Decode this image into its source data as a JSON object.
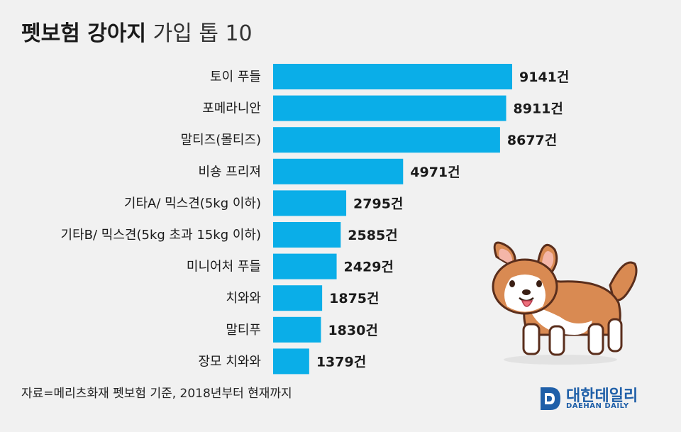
{
  "title": {
    "bold": "펫보험 강아지",
    "light": "가입 톱 10"
  },
  "source": "자료=메리츠화재 펫보험 기준, 2018년부터 현재까지",
  "brand": {
    "name": "대한데일리",
    "sub": "DAEHAN DAILY"
  },
  "colors": {
    "bar": "#0aaee8",
    "background": "#f1f1f1",
    "brand": "#1f5fa8"
  },
  "icons": {
    "dog": "corgi-dog-illustration",
    "logo": "daehan-daily-logo"
  },
  "chart_data": {
    "type": "bar",
    "orientation": "horizontal",
    "title": "펫보험 강아지 가입 톱 10",
    "categories": [
      "토이 푸들",
      "포메라니안",
      "말티즈(몰티즈)",
      "비숑 프리져",
      "기타A/ 믹스견(5kg 이하)",
      "기타B/ 믹스견(5kg 초과 15kg 이하)",
      "미니어처 푸들",
      "치와와",
      "말티푸",
      "장모 치와와"
    ],
    "values": [
      9141,
      8911,
      8677,
      4971,
      2795,
      2585,
      2429,
      1875,
      1830,
      1379
    ],
    "value_labels": [
      "9141건",
      "8911건",
      "8677건",
      "4971건",
      "2795건",
      "2585건",
      "2429건",
      "1875건",
      "1830건",
      "1379건"
    ],
    "unit": "건",
    "xlim": [
      0,
      9141
    ],
    "grid": false,
    "legend": "none"
  }
}
